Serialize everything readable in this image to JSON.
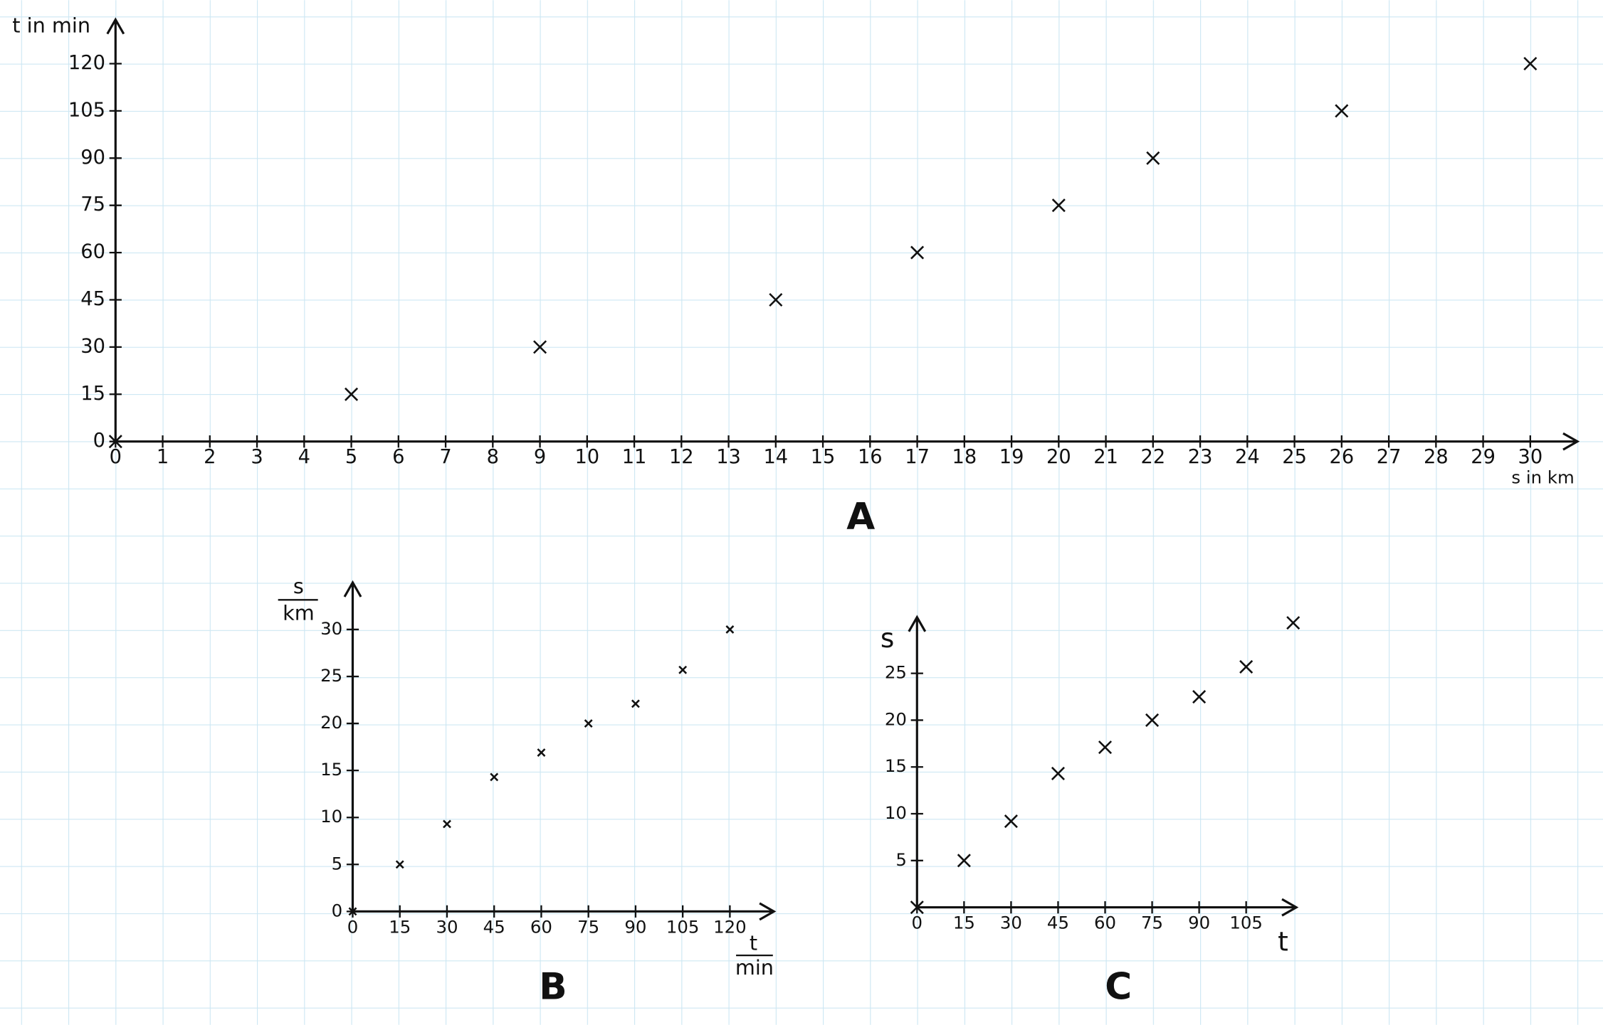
{
  "chart_data": [
    {
      "type": "scatter",
      "title": "A",
      "xlabel": "s in km",
      "ylabel": "t in min",
      "color": "#111111",
      "x": [
        0,
        5,
        9,
        14,
        17,
        20,
        22,
        26,
        30
      ],
      "values": [
        0,
        15,
        30,
        45,
        60,
        75,
        90,
        105,
        120
      ],
      "xlim": [
        0,
        31
      ],
      "ylim": [
        0,
        134
      ],
      "xticks": [
        0,
        1,
        2,
        3,
        4,
        5,
        6,
        7,
        8,
        9,
        10,
        11,
        12,
        13,
        14,
        15,
        16,
        17,
        18,
        19,
        20,
        21,
        22,
        23,
        24,
        25,
        26,
        27,
        28,
        29,
        30
      ],
      "yticks": [
        0,
        15,
        30,
        45,
        60,
        75,
        90,
        105,
        120
      ]
    },
    {
      "type": "scatter",
      "title": "B",
      "xlabel": [
        "t",
        "min"
      ],
      "ylabel": [
        "s",
        "km"
      ],
      "color": "#111111",
      "x": [
        0,
        15,
        30,
        45,
        60,
        75,
        90,
        105,
        120
      ],
      "values": [
        0,
        5,
        9.3,
        14.3,
        16.9,
        20,
        22.1,
        25.7,
        30
      ],
      "xlim": [
        0,
        134
      ],
      "ylim": [
        0,
        35
      ],
      "xticks": [
        0,
        15,
        30,
        45,
        60,
        75,
        90,
        105,
        120
      ],
      "yticks": [
        0,
        5,
        10,
        15,
        20,
        25,
        30
      ]
    },
    {
      "type": "scatter",
      "title": "C",
      "xlabel": "t",
      "ylabel": "s",
      "color": "#111111",
      "x": [
        0,
        15,
        30,
        45,
        60,
        75,
        90,
        105,
        120
      ],
      "values": [
        0,
        5,
        9.2,
        14.3,
        17.1,
        20,
        22.5,
        25.7,
        30.4
      ],
      "xlim": [
        0,
        121
      ],
      "ylim": [
        0,
        31
      ],
      "xticks": [
        0,
        15,
        30,
        45,
        60,
        75,
        90,
        105
      ],
      "yticks": [
        5,
        10,
        15,
        20,
        25
      ]
    }
  ]
}
